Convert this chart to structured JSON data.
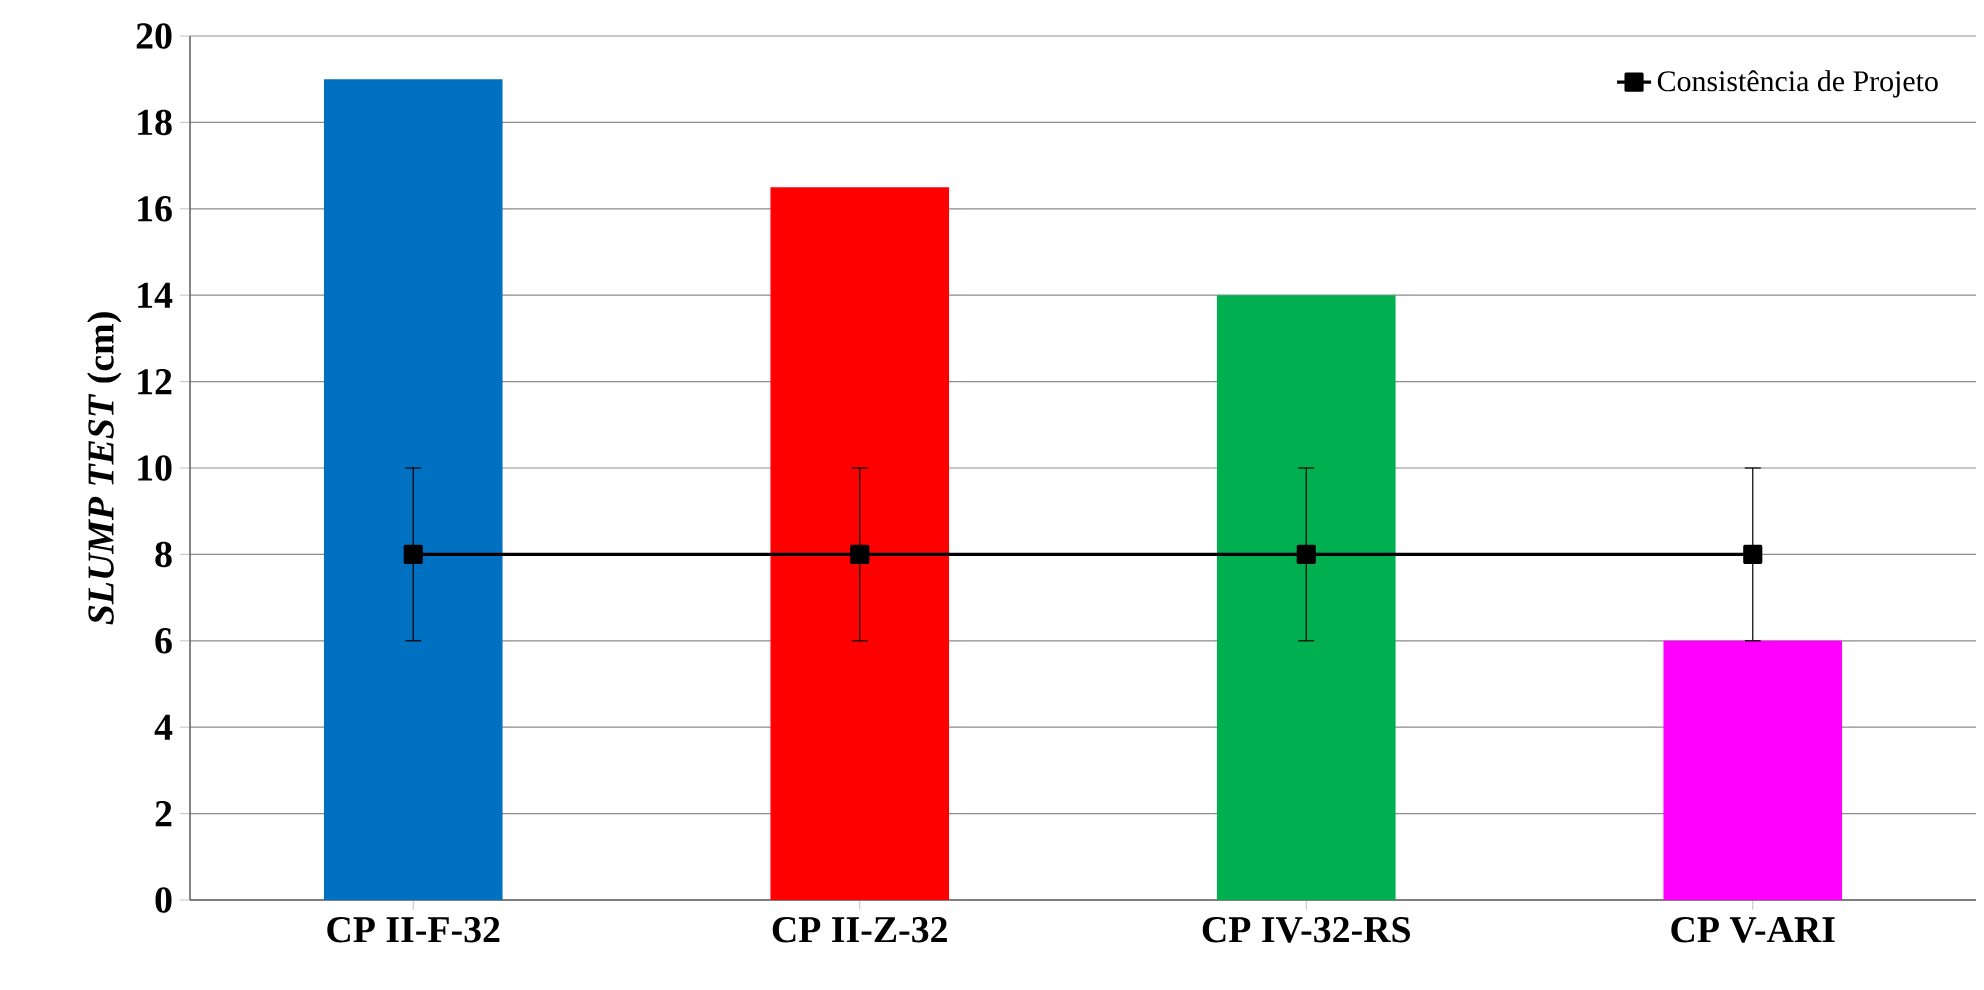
{
  "chart_data": {
    "type": "bar",
    "ylabel": "*SLUMP TEST* (cm)",
    "categories": [
      "CP II-F-32",
      "CP II-Z-32",
      "CP IV-32-RS",
      "CP V-ARI"
    ],
    "series": [
      {
        "colors": [
          "#0070c0",
          "#ff0000",
          "#00b050",
          "#ff00ff"
        ],
        "values": [
          19,
          16.5,
          14,
          6
        ]
      },
      {
        "type": "line",
        "name": "Consistência de Projeto",
        "color": "#000000",
        "marker": "square",
        "line_style": "solid",
        "values": [
          8,
          8,
          8,
          8
        ],
        "errors": [
          2,
          2,
          2,
          2
        ]
      }
    ],
    "ylim": [
      0,
      20
    ],
    "yticks": [
      0,
      2,
      4,
      6,
      8,
      10,
      12,
      14,
      16,
      18,
      20
    ],
    "grid": "y",
    "legend": "top right"
  }
}
